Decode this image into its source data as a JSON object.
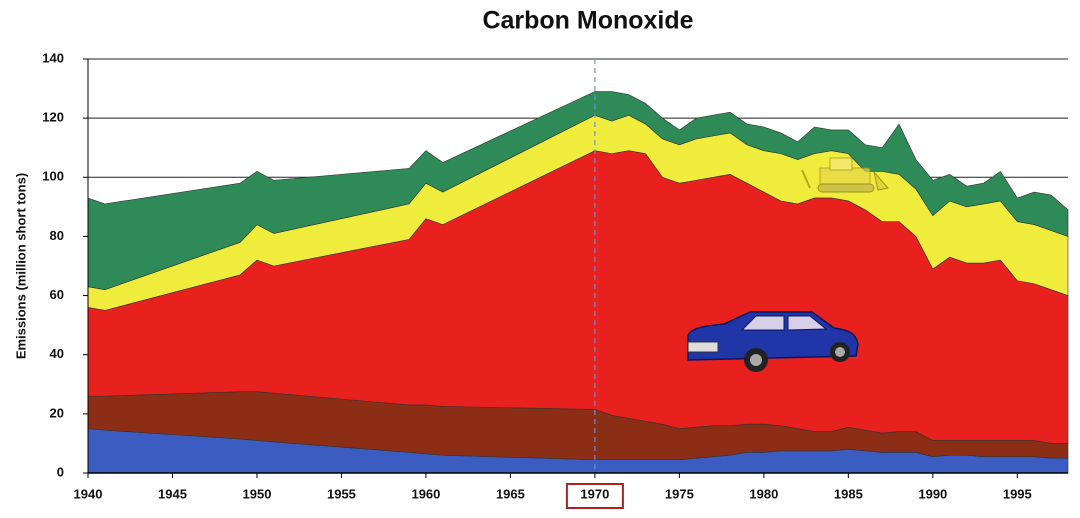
{
  "chart_data": {
    "type": "stacked-area",
    "title": "Carbon Monoxide",
    "y_label": "Emissions (million short tons)",
    "x": [
      1940,
      1941,
      1949,
      1950,
      1951,
      1959,
      1960,
      1961,
      1970,
      1971,
      1972,
      1973,
      1974,
      1975,
      1976,
      1977,
      1978,
      1979,
      1980,
      1981,
      1982,
      1983,
      1984,
      1985,
      1986,
      1987,
      1988,
      1989,
      1990,
      1991,
      1992,
      1993,
      1994,
      1995,
      1996,
      1997,
      1998
    ],
    "series": [
      {
        "color": "#3b5cc0",
        "values": [
          15,
          14.5,
          11.5,
          11,
          10.5,
          7,
          6.5,
          6,
          4.5,
          4.5,
          4.5,
          4.5,
          4.5,
          4.5,
          5,
          5.5,
          6,
          7,
          7,
          7.5,
          7.5,
          7.5,
          7.5,
          8,
          7.5,
          7,
          7,
          7,
          5.5,
          6,
          6,
          5.5,
          5.5,
          5.5,
          5.5,
          5,
          5
        ]
      },
      {
        "color": "#8c2d16",
        "values": [
          11,
          11.5,
          16,
          16.5,
          16.5,
          16,
          16.5,
          16.5,
          17,
          15,
          14,
          13,
          12,
          10.5,
          10.5,
          10.5,
          10,
          9.5,
          9.5,
          8.5,
          7.5,
          6.5,
          6.5,
          7.5,
          7,
          6.5,
          7,
          7,
          5.5,
          5,
          5,
          5.5,
          5.5,
          5.5,
          5.5,
          5,
          5
        ]
      },
      {
        "color": "#e8201e",
        "values": [
          30,
          29,
          39.5,
          44.5,
          43,
          56,
          63,
          61.5,
          87.5,
          88.5,
          90.5,
          90.5,
          83.5,
          83,
          83.5,
          84,
          85,
          81.5,
          78.5,
          76,
          76,
          79,
          79,
          76.5,
          74.5,
          71.5,
          71,
          66,
          58,
          62,
          60,
          60,
          61,
          54,
          53,
          52,
          50
        ]
      },
      {
        "color": "#f0ec3c",
        "values": [
          7,
          7,
          11,
          12,
          11,
          12,
          12,
          11,
          12,
          11,
          12,
          10,
          13,
          13,
          14,
          14,
          14,
          13,
          14,
          16,
          15,
          15,
          16,
          16,
          13,
          17,
          16,
          16,
          18,
          19,
          19,
          20,
          20,
          20,
          20,
          20,
          20
        ]
      },
      {
        "color": "#2e8b57",
        "values": [
          30,
          29,
          20,
          18,
          18,
          12,
          11,
          10,
          8,
          10,
          7,
          7,
          7,
          5,
          7,
          7,
          7,
          7,
          8,
          7,
          6,
          9,
          7,
          8,
          9,
          8,
          17,
          10,
          12,
          9,
          7,
          7,
          10,
          8,
          11,
          12,
          9
        ]
      }
    ],
    "xlim": [
      1940,
      1998
    ],
    "xticks": [
      1940,
      1945,
      1950,
      1955,
      1960,
      1965,
      1970,
      1975,
      1980,
      1985,
      1990,
      1995
    ],
    "ylim": [
      0,
      140
    ],
    "yticks": [
      0,
      20,
      40,
      60,
      80,
      100,
      120,
      140
    ],
    "grid": true,
    "reference_line_x": 1970
  }
}
